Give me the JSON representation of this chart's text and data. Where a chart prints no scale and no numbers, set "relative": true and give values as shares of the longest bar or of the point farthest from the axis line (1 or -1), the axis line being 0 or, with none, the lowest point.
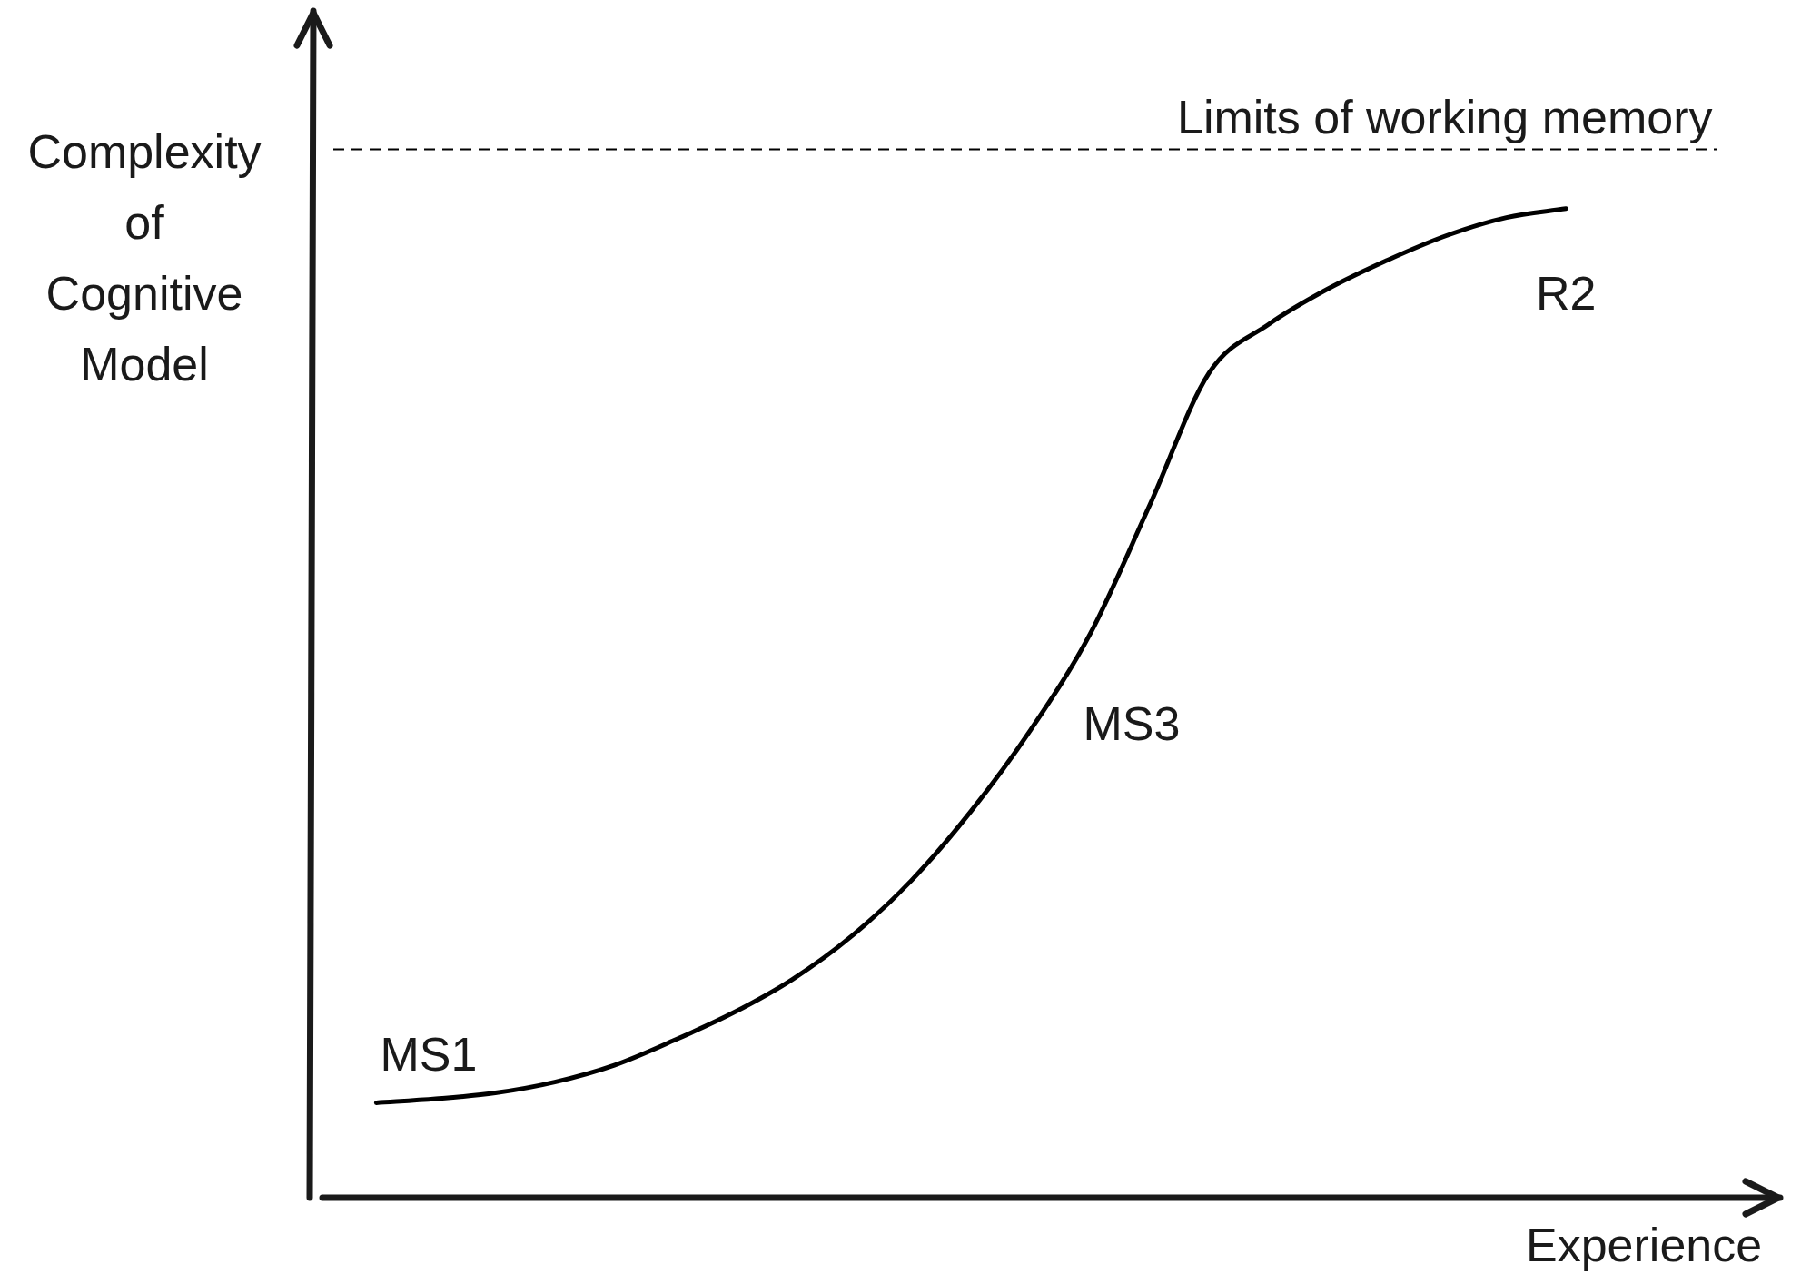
{
  "chart_data": {
    "type": "line",
    "relative": true,
    "tick_labels": false,
    "legend": false,
    "marker": "none",
    "line_style": "solid",
    "xlabel": "Experience",
    "ylabel": "Complexity of Cognitive Model",
    "categories": [
      null,
      null,
      null,
      null,
      null,
      null,
      null,
      null,
      null,
      null,
      null,
      null,
      null,
      null,
      null,
      null,
      null,
      null,
      null,
      null,
      null
    ],
    "series": [
      {
        "color": "#000000",
        "values": [
          0.096,
          0.1,
          0.106,
          0.117,
          0.134,
          0.159,
          0.187,
          0.221,
          0.265,
          0.321,
          0.391,
          0.473,
          0.57,
          0.7,
          0.834,
          0.883,
          0.919,
          0.948,
          0.973,
          0.991,
          1
        ]
      }
    ],
    "ref_lines": [
      {
        "axis": "y",
        "value": 1.06,
        "label": "Limits of working memory",
        "line_style": "dashed",
        "color": "#000000"
      }
    ],
    "annotations": [
      "MS1",
      "MS3",
      "R2"
    ]
  }
}
